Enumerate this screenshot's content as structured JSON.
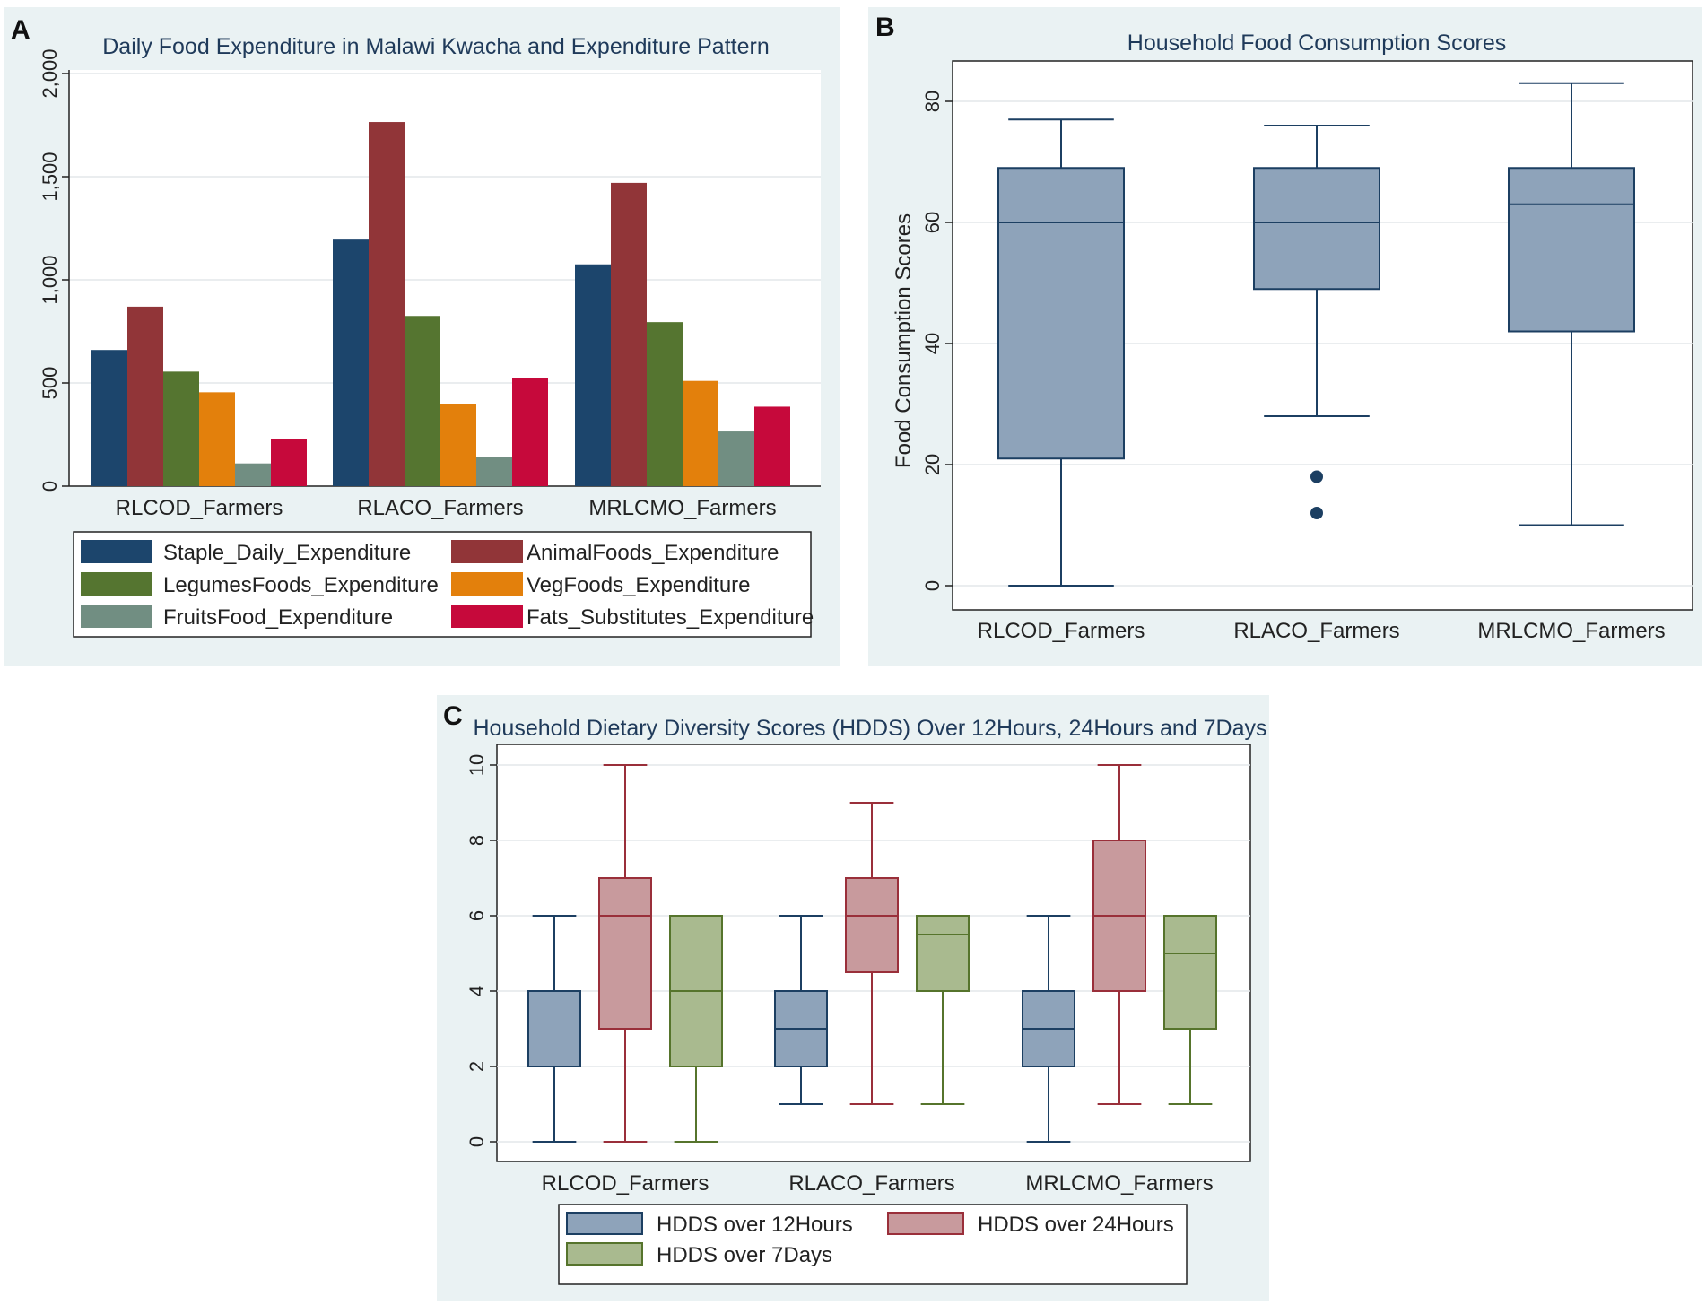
{
  "panels": {
    "a": {
      "letter": "A"
    },
    "b": {
      "letter": "B"
    },
    "c": {
      "letter": "C"
    }
  },
  "chart_data": [
    {
      "panel": "A",
      "type": "bar",
      "title": "Daily Food Expenditure in Malawi Kwacha and Expenditure Pattern",
      "xlabel": "",
      "ylabel": "",
      "ylim": [
        0,
        2000
      ],
      "yticks": [
        0,
        500,
        1000,
        1500,
        2000
      ],
      "ytick_labels": [
        "0",
        "500",
        "1,000",
        "1,500",
        "2,000"
      ],
      "categories": [
        "RLCOD_Farmers",
        "RLACO_Farmers",
        "MRLCMO_Farmers"
      ],
      "series": [
        {
          "name": "Staple_Daily_Expenditure",
          "color": "#1c456c",
          "values": [
            660,
            1195,
            1075
          ]
        },
        {
          "name": "AnimalFoods_Expenditure",
          "color": "#913538",
          "values": [
            870,
            1765,
            1470
          ]
        },
        {
          "name": "LegumesFoods_Expenditure",
          "color": "#557530",
          "values": [
            555,
            825,
            795
          ]
        },
        {
          "name": "VegFoods_Expenditure",
          "color": "#e3800c",
          "values": [
            455,
            400,
            510
          ]
        },
        {
          "name": "FruitsFood_Expenditure",
          "color": "#718e82",
          "values": [
            110,
            140,
            265
          ]
        },
        {
          "name": "Fats_Substitutes_Expenditure",
          "color": "#c6093b",
          "values": [
            230,
            525,
            385
          ]
        }
      ],
      "grid": true,
      "legend": "bottom"
    },
    {
      "panel": "B",
      "type": "box",
      "title": "Household Food Consumption Scores",
      "xlabel": "",
      "ylabel": "Food Consumption Scores",
      "ylim": [
        0,
        85
      ],
      "yticks": [
        0,
        20,
        40,
        60,
        80
      ],
      "ytick_labels": [
        "0",
        "20",
        "40",
        "60",
        "80"
      ],
      "categories": [
        "RLCOD_Farmers",
        "RLACO_Farmers",
        "MRLCMO_Farmers"
      ],
      "series": [
        {
          "name": "Food Consumption Scores",
          "color": "#8ea3ba",
          "edge": "#1c3f62",
          "boxes": [
            {
              "min": 0,
              "q1": 21,
              "median": 60,
              "q3": 69,
              "max": 77,
              "outliers": []
            },
            {
              "min": 28,
              "q1": 49,
              "median": 60,
              "q3": 69,
              "max": 76,
              "outliers": [
                18,
                12
              ]
            },
            {
              "min": 10,
              "q1": 42,
              "median": 63,
              "q3": 69,
              "max": 83,
              "outliers": []
            }
          ]
        }
      ],
      "grid": true,
      "legend": "none"
    },
    {
      "panel": "C",
      "type": "box",
      "title": "Household Dietary Diversity Scores (HDDS) Over 12Hours, 24Hours and 7Days",
      "xlabel": "",
      "ylabel": "",
      "ylim": [
        0,
        10
      ],
      "yticks": [
        0,
        2,
        4,
        6,
        8,
        10
      ],
      "ytick_labels": [
        "0",
        "2",
        "4",
        "6",
        "8",
        "10"
      ],
      "categories": [
        "RLCOD_Farmers",
        "RLACO_Farmers",
        "MRLCMO_Farmers"
      ],
      "series": [
        {
          "name": "HDDS over 12Hours",
          "color": "#8ea3ba",
          "edge": "#1c3f62",
          "boxes": [
            {
              "min": 0,
              "q1": 2,
              "median": 2,
              "q3": 4,
              "max": 6
            },
            {
              "min": 1,
              "q1": 2,
              "median": 3,
              "q3": 4,
              "max": 6
            },
            {
              "min": 0,
              "q1": 2,
              "median": 3,
              "q3": 4,
              "max": 6
            }
          ]
        },
        {
          "name": "HDDS over 24Hours",
          "color": "#c89a9d",
          "edge": "#9a2f3a",
          "boxes": [
            {
              "min": 0,
              "q1": 3,
              "median": 6,
              "q3": 7,
              "max": 10
            },
            {
              "min": 1,
              "q1": 4.5,
              "median": 6,
              "q3": 7,
              "max": 9
            },
            {
              "min": 1,
              "q1": 4,
              "median": 6,
              "q3": 8,
              "max": 10
            }
          ]
        },
        {
          "name": "HDDS over 7Days",
          "color": "#a9ba8f",
          "edge": "#56742c",
          "boxes": [
            {
              "min": 0,
              "q1": 2,
              "median": 4,
              "q3": 6,
              "max": 6
            },
            {
              "min": 1,
              "q1": 4,
              "median": 5.5,
              "q3": 6,
              "max": 6
            },
            {
              "min": 1,
              "q1": 3,
              "median": 5,
              "q3": 6,
              "max": 6
            }
          ]
        }
      ],
      "grid": true,
      "legend": "bottom"
    }
  ]
}
